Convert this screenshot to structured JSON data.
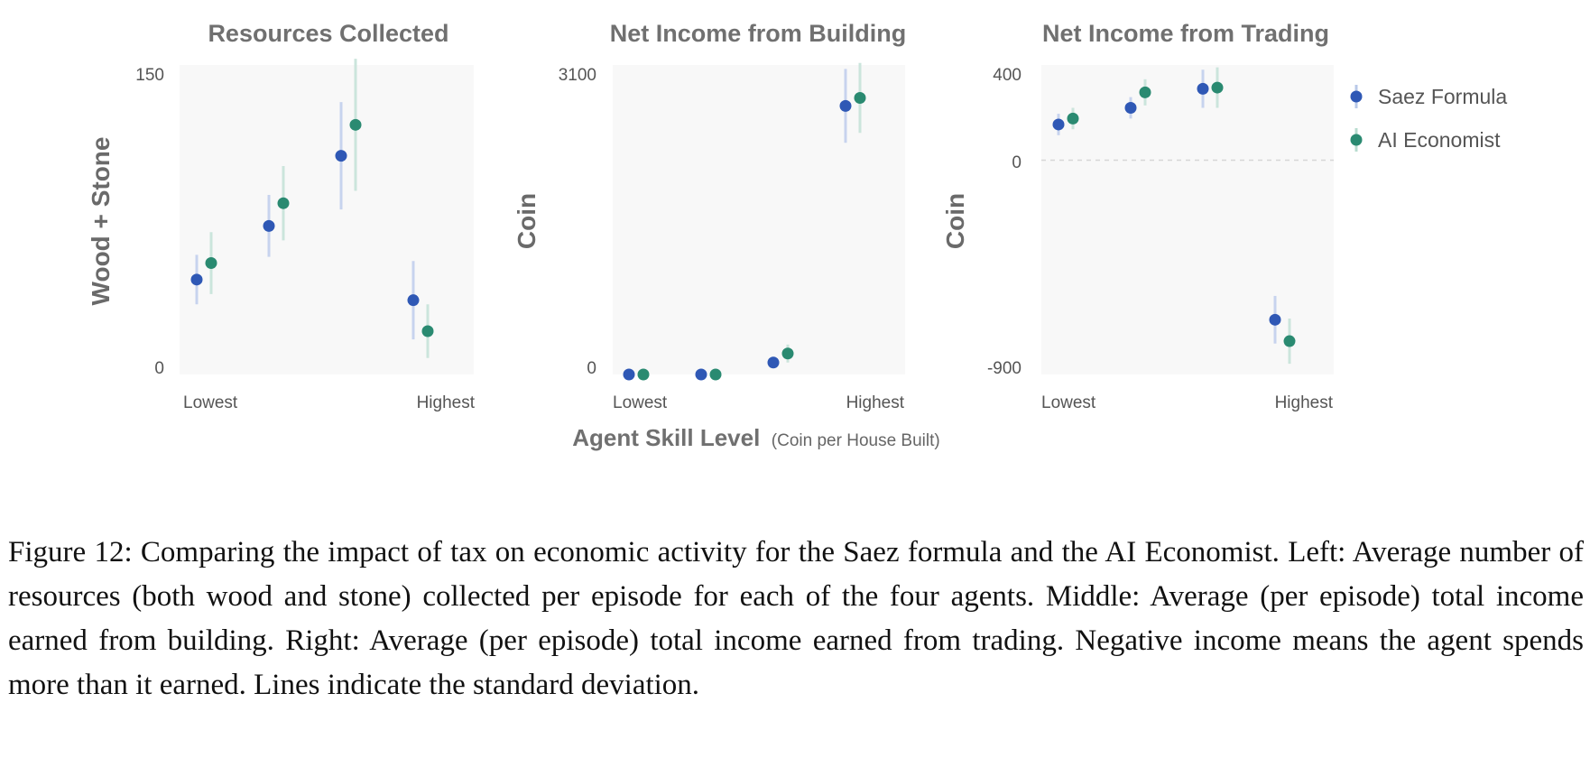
{
  "caption": "Figure 12:  Comparing the impact of tax on economic activity for the Saez formula and the AI Economist. Left: Average number of resources (both wood and stone) collected per episode for each of the four agents. Middle: Average (per episode) total income earned from building. Right: Average (per episode) total income earned from trading. Negative income means the agent spends more than it earned. Lines indicate the standard deviation.",
  "x_axis_title": {
    "main": "Agent Skill Level",
    "sub": "(Coin per House Built)"
  },
  "legend": [
    {
      "name": "Saez Formula",
      "color": "#2f58b5"
    },
    {
      "name": "AI Economist",
      "color": "#2a8a71"
    }
  ],
  "chart_data": [
    {
      "type": "scatter",
      "title": "Resources Collected",
      "ylabel": "Wood + Stone",
      "ylim": [
        0,
        150
      ],
      "yticks": [
        "150",
        "0"
      ],
      "xticks": [
        "Lowest",
        "Highest"
      ],
      "categories": [
        1,
        2,
        3,
        4
      ],
      "zero_line": false,
      "series": [
        {
          "name": "Saez Formula",
          "color": "#2f58b5",
          "values": [
            46,
            72,
            106,
            36
          ],
          "std": [
            12,
            15,
            26,
            19
          ]
        },
        {
          "name": "AI Economist",
          "color": "#2a8a71",
          "values": [
            54,
            83,
            121,
            21
          ],
          "std": [
            15,
            18,
            32,
            13
          ]
        }
      ]
    },
    {
      "type": "scatter",
      "title": "Net Income from Building",
      "ylabel": "Coin",
      "ylim": [
        0,
        3100
      ],
      "yticks": [
        "3100",
        "0"
      ],
      "xticks": [
        "Lowest",
        "Highest"
      ],
      "categories": [
        1,
        2,
        3,
        4
      ],
      "zero_line": false,
      "series": [
        {
          "name": "Saez Formula",
          "color": "#2f58b5",
          "values": [
            0,
            0,
            120,
            2690
          ],
          "std": [
            0,
            0,
            0,
            370
          ]
        },
        {
          "name": "AI Economist",
          "color": "#2a8a71",
          "values": [
            0,
            0,
            210,
            2770
          ],
          "std": [
            0,
            0,
            90,
            350
          ]
        }
      ]
    },
    {
      "type": "scatter",
      "title": "Net Income from Trading",
      "ylabel": "Coin",
      "ylim": [
        -900,
        400
      ],
      "yticks": [
        "400",
        "0",
        "-900"
      ],
      "xticks": [
        "Lowest",
        "Highest"
      ],
      "categories": [
        1,
        2,
        3,
        4
      ],
      "zero_line": true,
      "series": [
        {
          "name": "Saez Formula",
          "color": "#2f58b5",
          "values": [
            150,
            220,
            300,
            -670
          ],
          "std": [
            45,
            45,
            80,
            100
          ]
        },
        {
          "name": "AI Economist",
          "color": "#2a8a71",
          "values": [
            175,
            285,
            305,
            -760
          ],
          "std": [
            45,
            55,
            85,
            95
          ]
        }
      ]
    }
  ]
}
